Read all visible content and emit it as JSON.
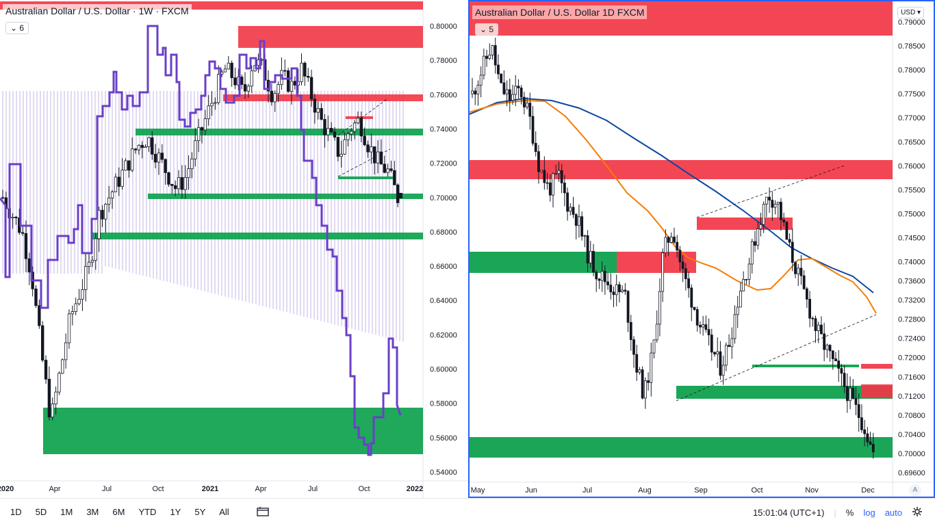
{
  "left_chart": {
    "title": "Australian Dollar / U.S. Dollar · 1W · FXCM",
    "indicator_count": "6",
    "price_ticks": [
      "0.80000",
      "0.78000",
      "0.76000",
      "0.74000",
      "0.72000",
      "0.70000",
      "0.68000",
      "0.66000",
      "0.64000",
      "0.62000",
      "0.60000",
      "0.58000",
      "0.56000",
      "0.54000"
    ],
    "time_ticks": [
      "2020",
      "Apr",
      "Jul",
      "Oct",
      "2021",
      "Apr",
      "Jul",
      "Oct",
      "2022"
    ]
  },
  "right_chart": {
    "title": "Australian Dollar / U.S. Dollar  1D  FXCM",
    "indicator_count": "5",
    "currency": "USD",
    "price_ticks": [
      "0.79000",
      "0.78500",
      "0.78000",
      "0.77500",
      "0.77000",
      "0.76500",
      "0.76000",
      "0.75500",
      "0.75000",
      "0.74500",
      "0.74000",
      "0.73600",
      "0.73200",
      "0.72800",
      "0.72400",
      "0.72000",
      "0.71600",
      "0.71200",
      "0.70800",
      "0.70400",
      "0.70000",
      "0.69600"
    ],
    "time_ticks": [
      "May",
      "Jun",
      "Jul",
      "Aug",
      "Sep",
      "Oct",
      "Nov",
      "Dec"
    ],
    "auto_scale_badge": "A"
  },
  "bottom_toolbar": {
    "ranges": [
      "1D",
      "5D",
      "1M",
      "3M",
      "6M",
      "YTD",
      "1Y",
      "5Y",
      "All"
    ],
    "clock": "15:01:04 (UTC+1)",
    "percent": "%",
    "log": "log",
    "auto": "auto"
  },
  "colors": {
    "supply_zone": "#f23645",
    "demand_zone": "#089e49",
    "overlay_line": "#6a3fc8",
    "ema_fast": "#f57c00",
    "ema_slow": "#0d47a1",
    "candle": "#131722"
  },
  "chart_data": [
    {
      "type": "candlestick",
      "title": "Australian Dollar / U.S. Dollar · 1W · FXCM",
      "y_range": [
        0.535,
        0.81
      ],
      "price_path": [
        0.7,
        0.69,
        0.68,
        0.655,
        0.61,
        0.57,
        0.6,
        0.63,
        0.645,
        0.66,
        0.69,
        0.7,
        0.71,
        0.72,
        0.73,
        0.735,
        0.725,
        0.715,
        0.705,
        0.712,
        0.73,
        0.745,
        0.76,
        0.775,
        0.77,
        0.76,
        0.78,
        0.775,
        0.76,
        0.77,
        0.765,
        0.775,
        0.76,
        0.745,
        0.735,
        0.725,
        0.74,
        0.745,
        0.73,
        0.72,
        0.715,
        0.7
      ]
    },
    {
      "type": "candlestick",
      "title": "Australian Dollar / U.S. Dollar  1D  FXCM",
      "y_range": [
        0.695,
        0.792
      ],
      "price_path": [
        0.775,
        0.78,
        0.785,
        0.776,
        0.774,
        0.776,
        0.77,
        0.76,
        0.755,
        0.758,
        0.752,
        0.749,
        0.742,
        0.738,
        0.736,
        0.734,
        0.733,
        0.72,
        0.712,
        0.722,
        0.742,
        0.747,
        0.738,
        0.732,
        0.726,
        0.722,
        0.718,
        0.724,
        0.734,
        0.74,
        0.748,
        0.754,
        0.752,
        0.744,
        0.738,
        0.732,
        0.726,
        0.722,
        0.718,
        0.714,
        0.71,
        0.706,
        0.7
      ]
    }
  ]
}
